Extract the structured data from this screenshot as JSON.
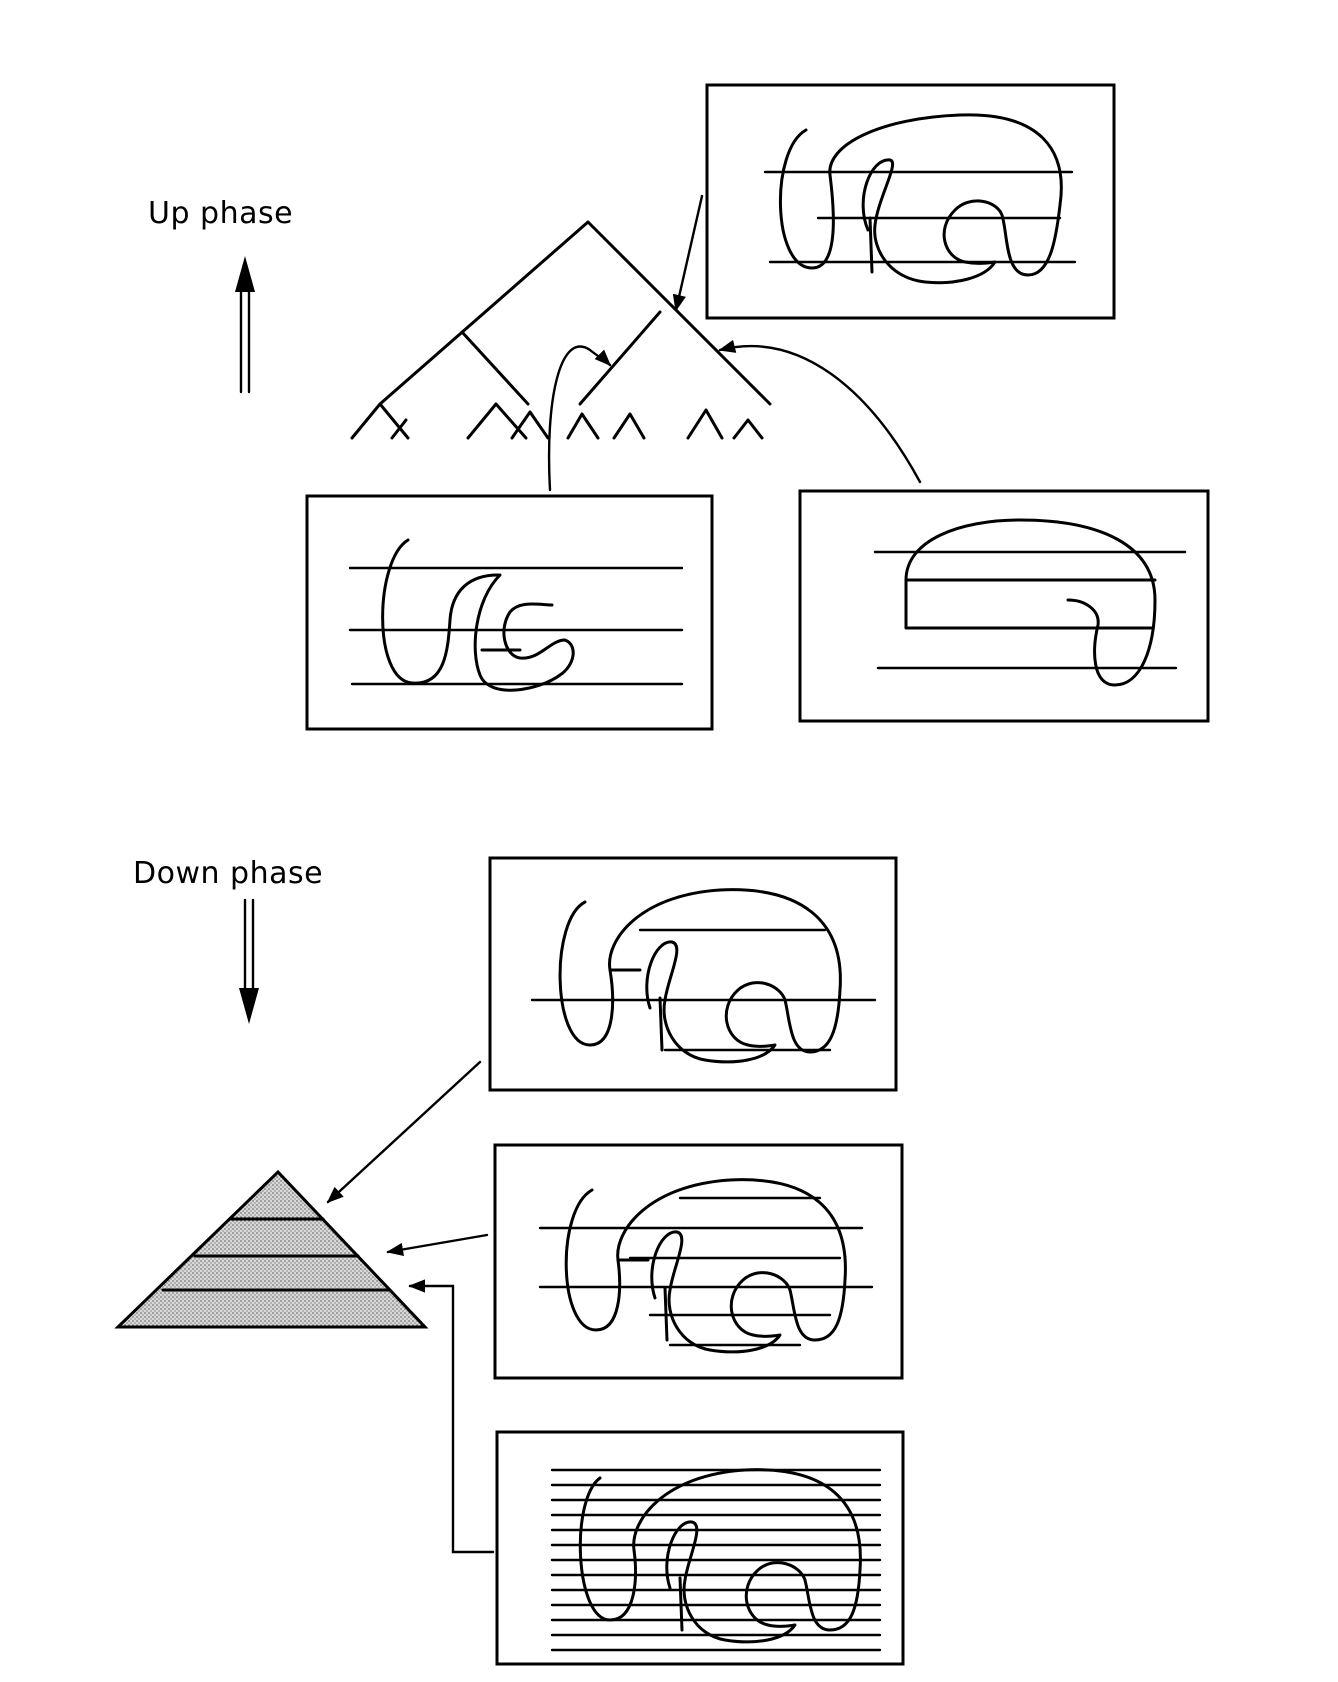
{
  "up_phase": {
    "label": "Up phase"
  },
  "down_phase": {
    "label": "Down phase"
  }
}
